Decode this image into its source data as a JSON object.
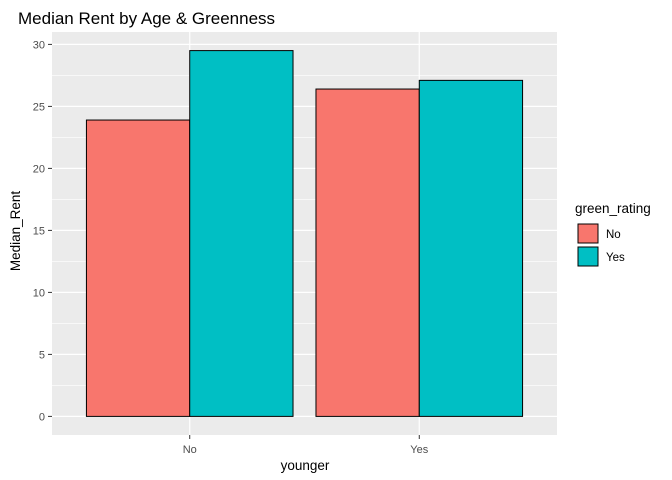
{
  "chart_data": {
    "type": "bar",
    "title": "Median Rent by Age & Greenness",
    "xlabel": "younger",
    "ylabel": "Median_Rent",
    "categories": [
      "No",
      "Yes"
    ],
    "series": [
      {
        "name": "No",
        "color": "#F8766D",
        "values": [
          23.9,
          26.4
        ]
      },
      {
        "name": "Yes",
        "color": "#00BFC4",
        "values": [
          29.5,
          27.1
        ]
      }
    ],
    "ylim": [
      -1.5,
      31
    ],
    "yticks": [
      0,
      5,
      10,
      15,
      20,
      25,
      30
    ],
    "grid": true,
    "legend": {
      "title": "green_rating",
      "placement": "right"
    }
  }
}
